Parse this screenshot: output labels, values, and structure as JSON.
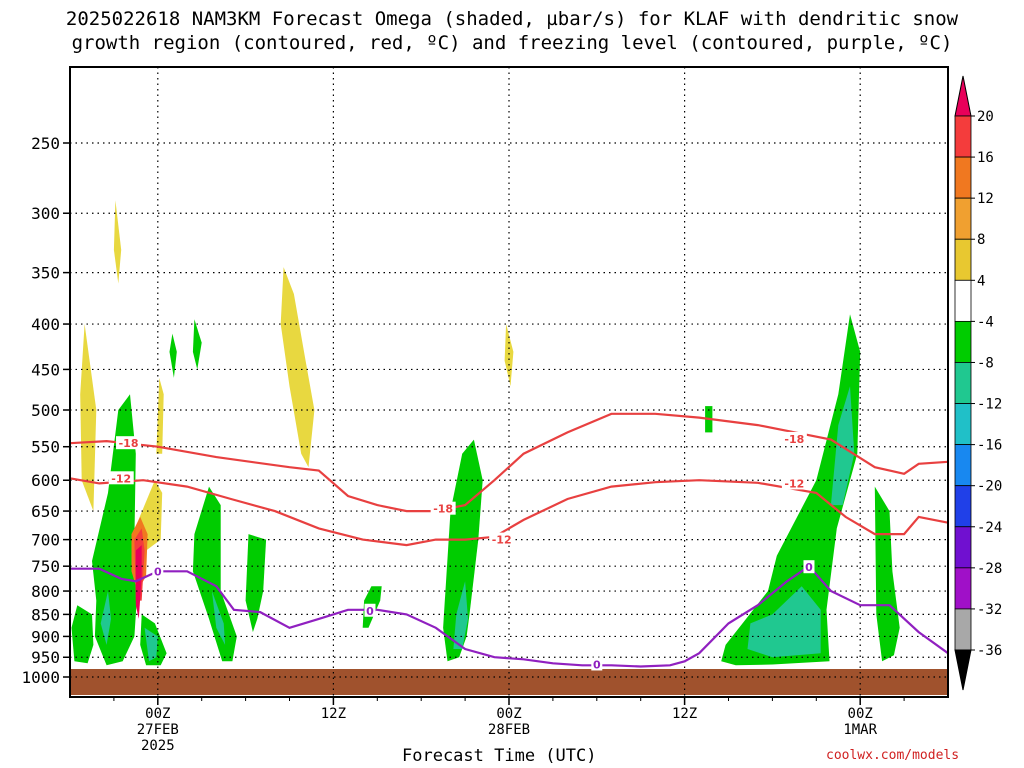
{
  "title_line1": "2025022618 NAM3KM Forecast Omega (shaded, µbar/s) for KLAF with dendritic snow",
  "title_line2": "growth region (contoured, red, ºC) and freezing level (contoured, purple, ºC)",
  "credit": "coolwx.com/models",
  "chart_data": {
    "type": "time-height cross section",
    "xlabel": "Forecast Time (UTC)",
    "x_ticks": [
      {
        "hour": 6,
        "label": "00Z",
        "sub1": "27FEB",
        "sub2": "2025"
      },
      {
        "hour": 18,
        "label": "12Z",
        "sub1": "",
        "sub2": ""
      },
      {
        "hour": 30,
        "label": "00Z",
        "sub1": "28FEB",
        "sub2": ""
      },
      {
        "hour": 42,
        "label": "12Z",
        "sub1": "",
        "sub2": ""
      },
      {
        "hour": 54,
        "label": "00Z",
        "sub1": "1MAR",
        "sub2": ""
      }
    ],
    "x_range_hours": [
      0,
      60
    ],
    "y_ticks": [
      250,
      300,
      350,
      400,
      450,
      500,
      550,
      600,
      650,
      700,
      750,
      800,
      850,
      900,
      950,
      1000
    ],
    "y_range_hpa": [
      200,
      1030
    ],
    "colorbar": {
      "labels": [
        "20",
        "16",
        "12",
        "8",
        "4",
        "-4",
        "-8",
        "-12",
        "-16",
        "-20",
        "-24",
        "-28",
        "-32",
        "-36"
      ],
      "colors": [
        "#e8005a",
        "#f43c3c",
        "#f07820",
        "#f0a030",
        "#e8c830",
        "#ffffff",
        "#00cc00",
        "#20c890",
        "#20c0c8",
        "#1888f0",
        "#2040e8",
        "#7010d0",
        "#a010c8",
        "#a8a8a8",
        "#000000"
      ]
    },
    "shading": [
      {
        "level": "4 to 8",
        "color": "#e8d840",
        "points": [
          [
            1,
            400
          ],
          [
            1.8,
            500
          ],
          [
            1.6,
            650
          ],
          [
            0.8,
            600
          ],
          [
            0.7,
            480
          ]
        ]
      },
      {
        "level": "4 to 8",
        "color": "#e8d840",
        "points": [
          [
            3.1,
            290
          ],
          [
            3.5,
            330
          ],
          [
            3.3,
            360
          ],
          [
            3.0,
            330
          ]
        ]
      },
      {
        "level": "4 to 8",
        "color": "#e8d840",
        "points": [
          [
            5.8,
            600
          ],
          [
            6.3,
            620
          ],
          [
            6.2,
            700
          ],
          [
            5.2,
            720
          ],
          [
            4.6,
            670
          ]
        ]
      },
      {
        "level": "4 to 8",
        "color": "#e8d840",
        "points": [
          [
            6.1,
            460
          ],
          [
            6.4,
            480
          ],
          [
            6.3,
            560
          ],
          [
            5.9,
            560
          ]
        ]
      },
      {
        "level": "4 to 8",
        "color": "#e8d840",
        "points": [
          [
            14.6,
            345
          ],
          [
            15.3,
            370
          ],
          [
            16.1,
            440
          ],
          [
            16.7,
            500
          ],
          [
            16.3,
            580
          ],
          [
            15.8,
            560
          ],
          [
            15,
            470
          ],
          [
            14.4,
            400
          ]
        ]
      },
      {
        "level": "4 to 8",
        "color": "#e8d840",
        "points": [
          [
            29.8,
            400
          ],
          [
            30.3,
            430
          ],
          [
            30.1,
            470
          ],
          [
            29.7,
            440
          ]
        ]
      },
      {
        "level": "-4 to -8",
        "color": "#00cc00",
        "points": [
          [
            0.5,
            830
          ],
          [
            1.5,
            850
          ],
          [
            1.6,
            920
          ],
          [
            1.2,
            965
          ],
          [
            0.3,
            960
          ],
          [
            0.1,
            880
          ]
        ]
      },
      {
        "level": "-4 to -8",
        "color": "#00cc00",
        "points": [
          [
            1.5,
            740
          ],
          [
            2.6,
            620
          ],
          [
            3.3,
            500
          ],
          [
            4.1,
            480
          ],
          [
            4.5,
            560
          ],
          [
            4.4,
            700
          ],
          [
            4.6,
            800
          ],
          [
            4.4,
            900
          ],
          [
            3.6,
            960
          ],
          [
            2.5,
            970
          ],
          [
            1.7,
            900
          ],
          [
            1.8,
            820
          ]
        ]
      },
      {
        "level": "-4 to -8",
        "color": "#00cc00",
        "points": [
          [
            4.9,
            850
          ],
          [
            5.8,
            870
          ],
          [
            6.6,
            940
          ],
          [
            6.2,
            970
          ],
          [
            5.2,
            970
          ],
          [
            4.8,
            920
          ]
        ]
      },
      {
        "level": "-4 to -8",
        "color": "#00cc00",
        "points": [
          [
            8.5,
            690
          ],
          [
            9.5,
            610
          ],
          [
            10.3,
            640
          ],
          [
            10.3,
            800
          ],
          [
            11.4,
            900
          ],
          [
            11.1,
            960
          ],
          [
            10.4,
            960
          ],
          [
            9.5,
            860
          ],
          [
            8.4,
            760
          ]
        ]
      },
      {
        "level": "-4 to -8",
        "color": "#00cc00",
        "points": [
          [
            12.2,
            690
          ],
          [
            13.4,
            700
          ],
          [
            13.2,
            800
          ],
          [
            12.8,
            860
          ],
          [
            12.5,
            890
          ],
          [
            12,
            820
          ]
        ]
      },
      {
        "level": "-4 to -8",
        "color": "#00cc00",
        "points": [
          [
            7,
            410
          ],
          [
            7.3,
            430
          ],
          [
            7.1,
            460
          ],
          [
            6.8,
            430
          ]
        ]
      },
      {
        "level": "-4 to -8",
        "color": "#00cc00",
        "points": [
          [
            8.5,
            395
          ],
          [
            9,
            420
          ],
          [
            8.7,
            450
          ],
          [
            8.4,
            430
          ]
        ]
      },
      {
        "level": "-4 to -8",
        "color": "#00cc00",
        "points": [
          [
            20.1,
            820
          ],
          [
            20.6,
            790
          ],
          [
            21.3,
            790
          ],
          [
            21.2,
            820
          ],
          [
            20.4,
            880
          ],
          [
            20,
            880
          ]
        ]
      },
      {
        "level": "-4 to -8",
        "color": "#00cc00",
        "points": [
          [
            26,
            650
          ],
          [
            26.8,
            560
          ],
          [
            27.6,
            540
          ],
          [
            28.2,
            600
          ],
          [
            27.9,
            700
          ],
          [
            27.3,
            850
          ],
          [
            27.1,
            900
          ],
          [
            26.6,
            950
          ],
          [
            25.8,
            960
          ],
          [
            25.5,
            880
          ]
        ]
      },
      {
        "level": "-4 to -8",
        "color": "#00cc00",
        "points": [
          [
            44.5,
            960
          ],
          [
            44.8,
            920
          ],
          [
            47.7,
            800
          ],
          [
            48.3,
            730
          ],
          [
            51,
            600
          ],
          [
            52.5,
            480
          ],
          [
            53.3,
            390
          ],
          [
            54,
            430
          ],
          [
            53.8,
            560
          ],
          [
            52.4,
            680
          ],
          [
            51.7,
            840
          ],
          [
            51.9,
            960
          ],
          [
            48,
            968
          ],
          [
            45.5,
            970
          ]
        ]
      },
      {
        "level": "-4 to -8",
        "color": "#00cc00",
        "points": [
          [
            55,
            610
          ],
          [
            56,
            650
          ],
          [
            56.2,
            760
          ],
          [
            56.7,
            880
          ],
          [
            56.3,
            945
          ],
          [
            55.5,
            960
          ],
          [
            55.1,
            850
          ]
        ]
      },
      {
        "level": "-4 to -8",
        "color": "#00cc00",
        "points": [
          [
            43.4,
            495
          ],
          [
            43.9,
            495
          ],
          [
            43.9,
            530
          ],
          [
            43.4,
            530
          ]
        ]
      },
      {
        "level": "-8 to -12",
        "color": "#20c890",
        "points": [
          [
            5.1,
            880
          ],
          [
            6,
            900
          ],
          [
            5.9,
            950
          ],
          [
            5.4,
            960
          ]
        ]
      },
      {
        "level": "-8 to -12",
        "color": "#20c890",
        "points": [
          [
            9.7,
            800
          ],
          [
            10.5,
            870
          ],
          [
            10.6,
            920
          ],
          [
            10,
            880
          ]
        ]
      },
      {
        "level": "-8 to -12",
        "color": "#20c890",
        "points": [
          [
            26.4,
            850
          ],
          [
            27,
            780
          ],
          [
            27.2,
            860
          ],
          [
            26.8,
            930
          ],
          [
            26.2,
            930
          ]
        ]
      },
      {
        "level": "-8 to -12",
        "color": "#20c890",
        "points": [
          [
            46.5,
            870
          ],
          [
            48,
            850
          ],
          [
            50,
            790
          ],
          [
            51.3,
            840
          ],
          [
            51.3,
            940
          ],
          [
            48,
            950
          ],
          [
            46.3,
            930
          ]
        ]
      },
      {
        "level": "-8 to -12",
        "color": "#20c890",
        "points": [
          [
            52.5,
            520
          ],
          [
            53.3,
            470
          ],
          [
            53.6,
            560
          ],
          [
            52.8,
            640
          ],
          [
            52,
            640
          ]
        ]
      },
      {
        "level": "-8 to -12",
        "color": "#20c890",
        "points": [
          [
            2.1,
            870
          ],
          [
            2.6,
            800
          ],
          [
            2.8,
            860
          ],
          [
            2.5,
            920
          ]
        ]
      },
      {
        "level": "12 to 16",
        "color": "#f07820",
        "points": [
          [
            4.2,
            690
          ],
          [
            4.8,
            660
          ],
          [
            5.3,
            690
          ],
          [
            5.2,
            770
          ],
          [
            4.6,
            800
          ],
          [
            4.2,
            760
          ]
        ]
      },
      {
        "level": "16 to 20",
        "color": "#f43c3c",
        "points": [
          [
            4.4,
            700
          ],
          [
            4.9,
            680
          ],
          [
            5.1,
            720
          ],
          [
            4.9,
            820
          ],
          [
            4.5,
            820
          ]
        ]
      },
      {
        "level": "> 20",
        "color": "#e8005a",
        "points": [
          [
            4.5,
            720
          ],
          [
            4.9,
            710
          ],
          [
            4.9,
            770
          ],
          [
            4.7,
            860
          ],
          [
            4.5,
            830
          ]
        ]
      }
    ],
    "contours": [
      {
        "name": "-18",
        "color": "#e84040",
        "points": [
          [
            0,
            545
          ],
          [
            2.5,
            542
          ],
          [
            6,
            550
          ],
          [
            10,
            565
          ],
          [
            15,
            580
          ],
          [
            17,
            585
          ],
          [
            19,
            625
          ],
          [
            21,
            640
          ],
          [
            23,
            650
          ],
          [
            25,
            650
          ],
          [
            27,
            640
          ],
          [
            29,
            600
          ],
          [
            31,
            560
          ],
          [
            34,
            530
          ],
          [
            37,
            505
          ],
          [
            40,
            505
          ],
          [
            43,
            510
          ],
          [
            47,
            520
          ],
          [
            52,
            540
          ],
          [
            55,
            580
          ],
          [
            57,
            590
          ],
          [
            58,
            575
          ],
          [
            60,
            572
          ]
        ],
        "labels": [
          [
            4,
            545
          ],
          [
            25.5,
            646
          ],
          [
            49.5,
            539
          ]
        ]
      },
      {
        "name": "-12",
        "color": "#e84040",
        "points": [
          [
            0,
            597
          ],
          [
            2,
            605
          ],
          [
            5,
            600
          ],
          [
            8,
            610
          ],
          [
            11,
            630
          ],
          [
            14,
            650
          ],
          [
            17,
            680
          ],
          [
            20,
            700
          ],
          [
            23,
            710
          ],
          [
            25,
            700
          ],
          [
            27,
            700
          ],
          [
            29,
            695
          ],
          [
            31,
            665
          ],
          [
            34,
            630
          ],
          [
            37,
            610
          ],
          [
            40,
            603
          ],
          [
            43,
            600
          ],
          [
            47,
            604
          ],
          [
            51,
            620
          ],
          [
            53,
            660
          ],
          [
            55,
            690
          ],
          [
            57,
            690
          ],
          [
            58,
            660
          ],
          [
            60,
            670
          ]
        ],
        "labels": [
          [
            3.5,
            597
          ],
          [
            29.5,
            700
          ],
          [
            49.5,
            605
          ]
        ]
      },
      {
        "name": "0",
        "color": "#9020c0",
        "points": [
          [
            0,
            755
          ],
          [
            2,
            755
          ],
          [
            3.5,
            775
          ],
          [
            4.5,
            780
          ],
          [
            6,
            760
          ],
          [
            8,
            760
          ],
          [
            10,
            790
          ],
          [
            11.2,
            840
          ],
          [
            13,
            845
          ],
          [
            15,
            880
          ],
          [
            17,
            860
          ],
          [
            19,
            840
          ],
          [
            21,
            840
          ],
          [
            23,
            850
          ],
          [
            25,
            880
          ],
          [
            27,
            930
          ],
          [
            29,
            950
          ],
          [
            31,
            955
          ],
          [
            33,
            965
          ],
          [
            35,
            970
          ],
          [
            37,
            970
          ],
          [
            39,
            973
          ],
          [
            41,
            970
          ],
          [
            42,
            960
          ],
          [
            43,
            940
          ],
          [
            45,
            870
          ],
          [
            47,
            830
          ],
          [
            49,
            780
          ],
          [
            50.5,
            750
          ],
          [
            52,
            800
          ],
          [
            54,
            830
          ],
          [
            56,
            830
          ],
          [
            58,
            890
          ],
          [
            60,
            940
          ]
        ],
        "labels": [
          [
            6,
            760
          ],
          [
            20.5,
            842
          ],
          [
            36,
            968
          ],
          [
            50.5,
            752
          ]
        ]
      }
    ]
  }
}
